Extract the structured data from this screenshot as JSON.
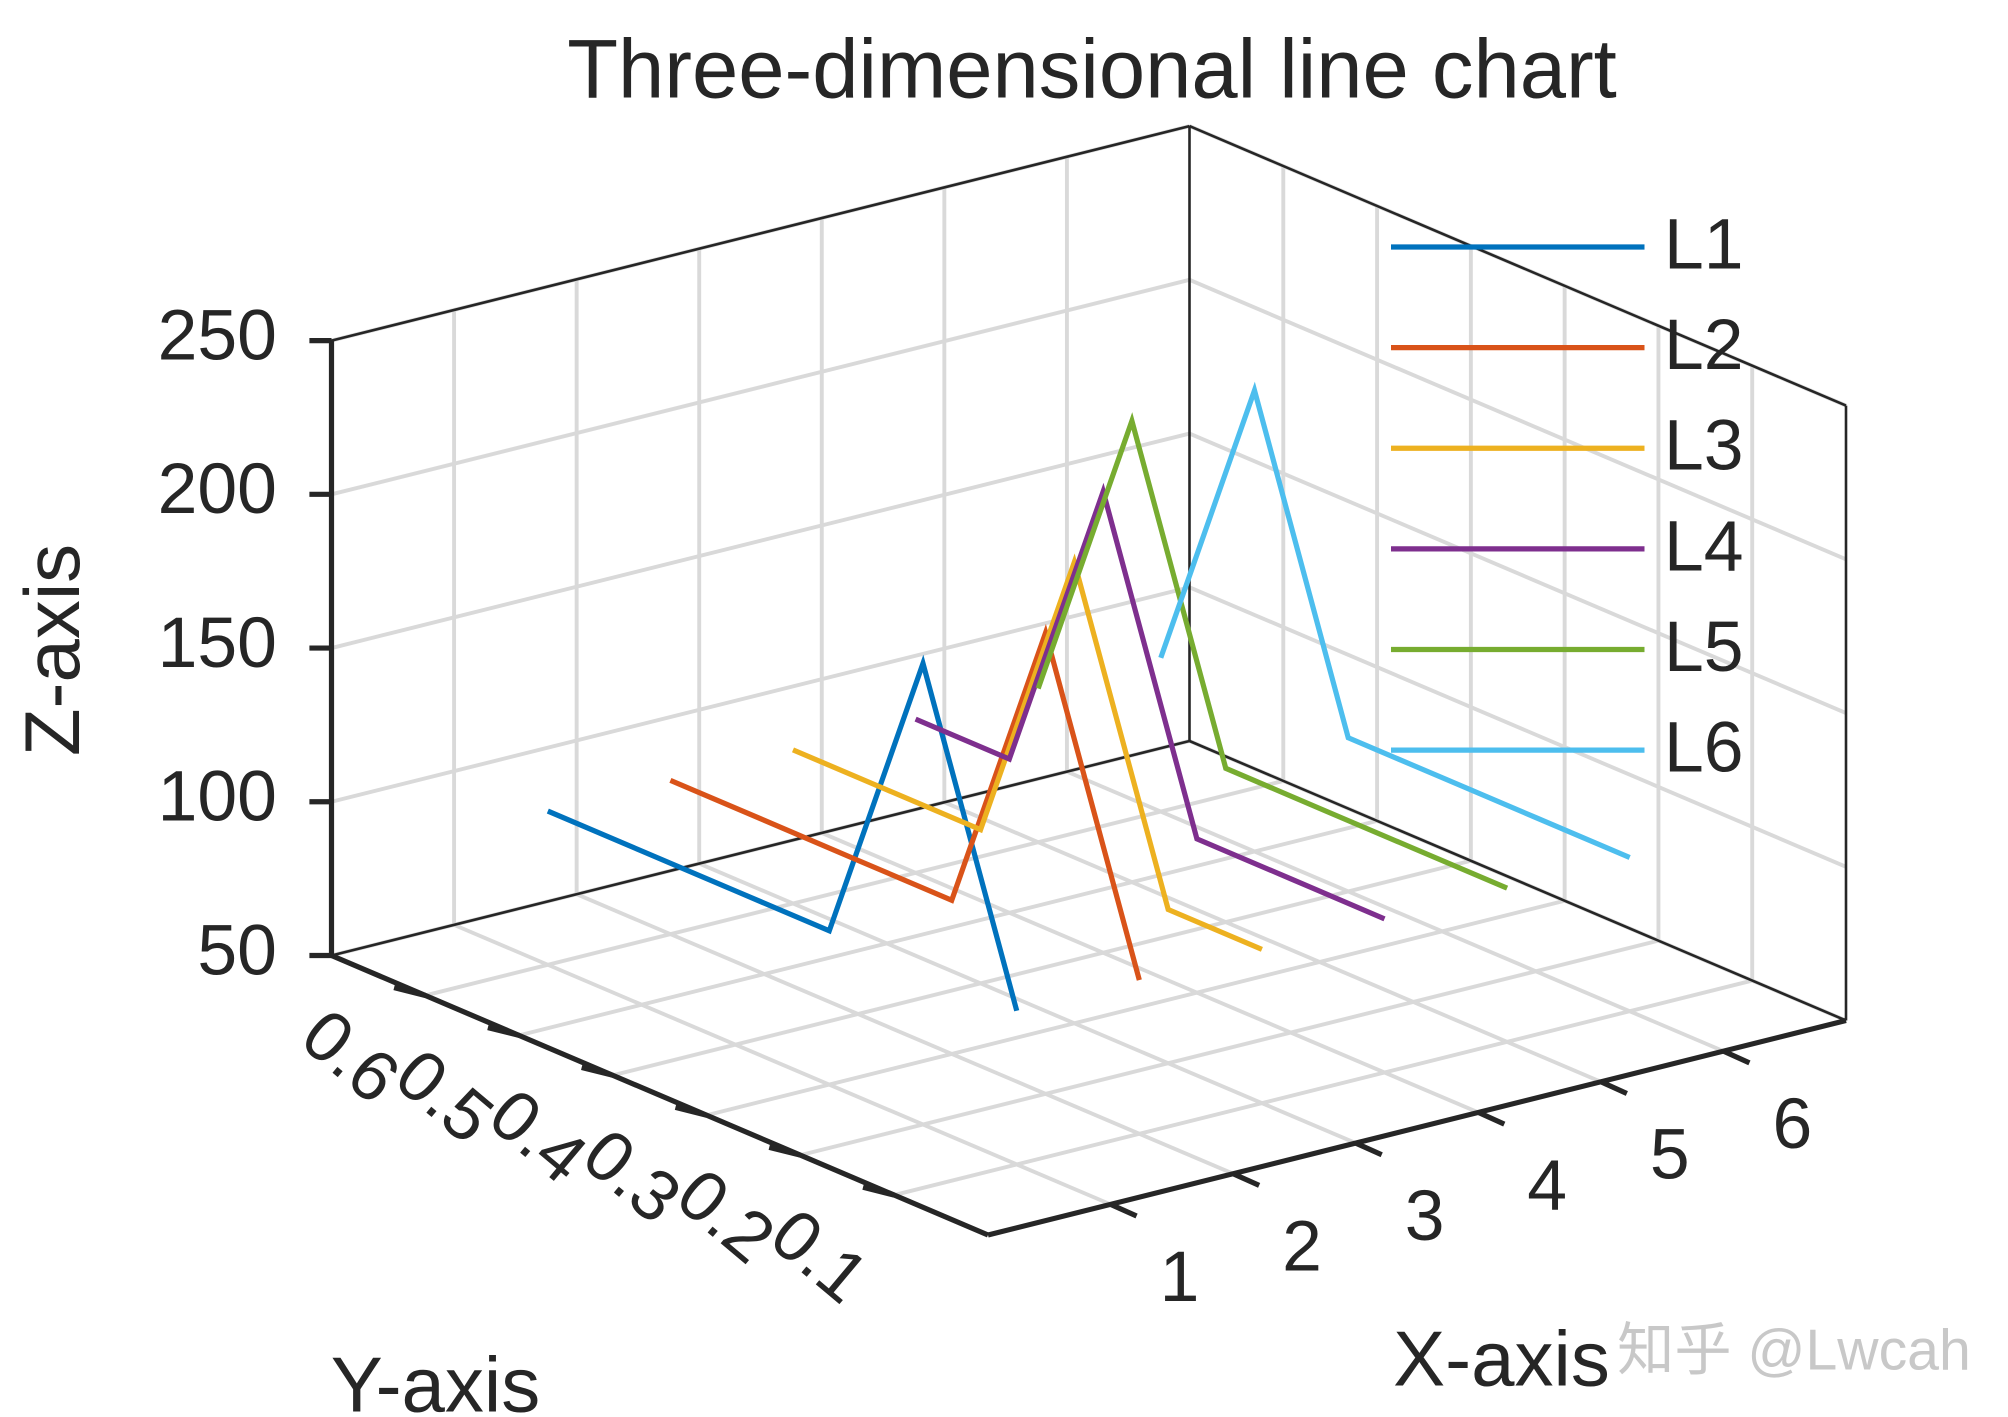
{
  "chart_data": {
    "type": "line3d",
    "title": "Three-dimensional line chart",
    "xlabel": "X-axis",
    "ylabel": "Y-axis",
    "zlabel": "Z-axis",
    "watermark": "知乎 @Lwcah",
    "xlim": [
      0,
      7
    ],
    "ylim": [
      0,
      0.7
    ],
    "zlim": [
      50,
      250
    ],
    "xticks": [
      1,
      2,
      3,
      4,
      5,
      6
    ],
    "yticks": [
      0.1,
      0.2,
      0.3,
      0.4,
      0.5,
      0.6
    ],
    "zticks": [
      50,
      100,
      150,
      200,
      250
    ],
    "grid": true,
    "legend": "northeast",
    "y": [
      0.1,
      0.2,
      0.3,
      0.4,
      0.5,
      0.6
    ],
    "series": [
      {
        "name": "L1",
        "color": "#0072bd",
        "x": 1,
        "values": [
          100,
          200,
          100,
          100,
          100,
          100
        ]
      },
      {
        "name": "L2",
        "color": "#d95319",
        "x": 2,
        "values": [
          100,
          200,
          100,
          100,
          100,
          100
        ]
      },
      {
        "name": "L3",
        "color": "#edb120",
        "x": 3,
        "values": [
          100,
          100,
          200,
          100,
          100,
          100
        ]
      },
      {
        "name": "L4",
        "color": "#7e2f8e",
        "x": 4,
        "values": [
          100,
          100,
          100,
          200,
          100,
          100
        ]
      },
      {
        "name": "L5",
        "color": "#77ac30",
        "x": 5,
        "values": [
          100,
          100,
          100,
          100,
          200,
          100
        ]
      },
      {
        "name": "L6",
        "color": "#4dbeee",
        "x": 6,
        "values": [
          100,
          100,
          100,
          100,
          200,
          100
        ]
      }
    ]
  }
}
